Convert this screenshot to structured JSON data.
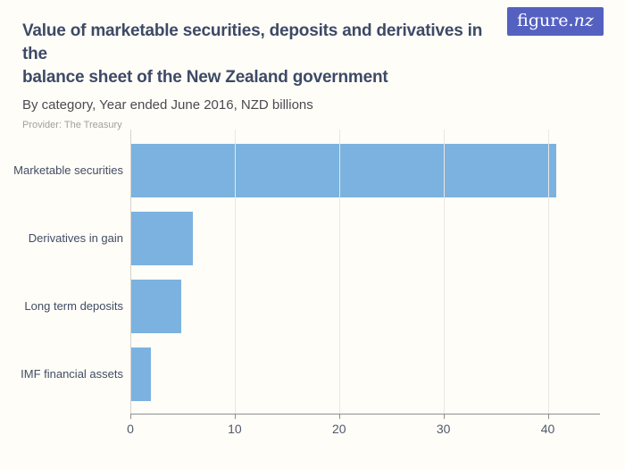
{
  "page": {
    "background": "#fffdf8"
  },
  "logo": {
    "text_main": "figure.",
    "text_suffix": "nz",
    "background": "#5561c1",
    "text_color": "#ffffff"
  },
  "header": {
    "title": "Value of marketable securities, deposits and derivatives in the balance sheet of the New Zealand government",
    "title_lines": [
      "Value of marketable securities, deposits and derivatives in the",
      "balance sheet of the New Zealand government"
    ],
    "subtitle": "By category, Year ended June 2016, NZD billions",
    "provider": "Provider: The Treasury"
  },
  "chart_data": {
    "type": "bar",
    "orientation": "horizontal",
    "title": "Value of marketable securities, deposits and derivatives in the balance sheet of the New Zealand government",
    "subtitle": "By category, Year ended June 2016, NZD billions",
    "unit": "NZD billions",
    "categories": [
      "Marketable securities",
      "Derivatives in gain",
      "Long term deposits",
      "IMF financial assets"
    ],
    "values": [
      40.8,
      6.0,
      4.9,
      2.0
    ],
    "xlabel": "",
    "ylabel": "",
    "xlim": [
      0,
      45
    ],
    "x_ticks": [
      0,
      10,
      20,
      30,
      40
    ],
    "grid": true,
    "legend": false,
    "bar_color": "#7cb2e0",
    "gridline_color": "#e8e7e2",
    "axis_color": "#8f8f8c"
  }
}
